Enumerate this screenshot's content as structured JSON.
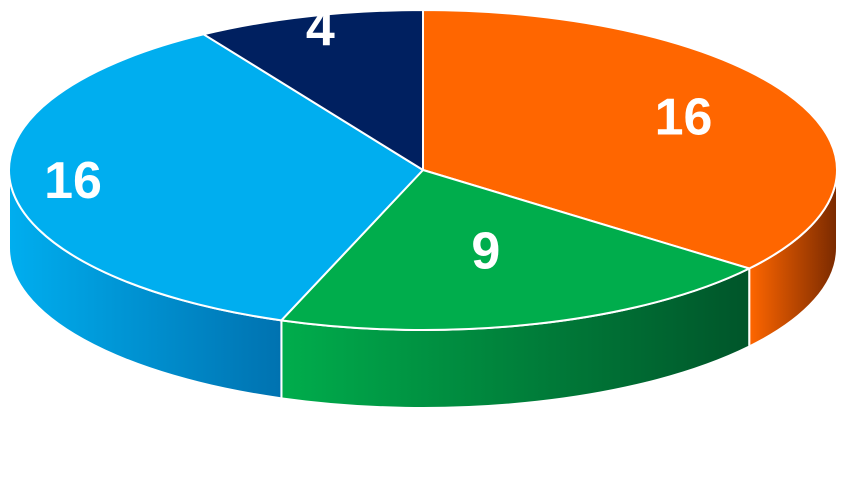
{
  "chart_data": {
    "type": "pie",
    "title": "",
    "style": "3d-exploded-none",
    "start_angle_deg": 90,
    "direction": "clockwise",
    "slices": [
      {
        "label": "16",
        "value": 16,
        "color": "#FF6600",
        "side_color": "#7A2A00"
      },
      {
        "label": "9",
        "value": 9,
        "color": "#00AD4C",
        "side_color": "#00552A"
      },
      {
        "label": "16",
        "value": 16,
        "color": "#00AEEF",
        "side_color": "#0072B0"
      },
      {
        "label": "4",
        "value": 4,
        "color": "#002060",
        "side_color": "#001238"
      }
    ],
    "legend": "none",
    "data_labels": "inside"
  }
}
